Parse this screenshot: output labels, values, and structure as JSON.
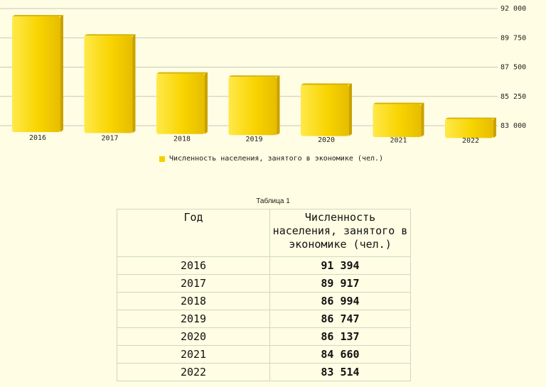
{
  "chart_data": {
    "type": "bar",
    "categories": [
      "2016",
      "2017",
      "2018",
      "2019",
      "2020",
      "2021",
      "2022"
    ],
    "series": [
      {
        "name": "Численность населения, занятого в экономике (чел.)",
        "values": [
          91394,
          89917,
          86994,
          86747,
          86137,
          84660,
          83514
        ]
      }
    ],
    "ylim": [
      83000,
      92000
    ],
    "y_ticks": [
      "92 000",
      "89 750",
      "87 500",
      "85 250",
      "83 000"
    ],
    "y_tick_values": [
      92000,
      89750,
      87500,
      85250,
      83000
    ],
    "grid": true,
    "legend_position": "bottom",
    "bar_color": "#f5d000"
  },
  "legend": {
    "label": "Численность населения, занятого в экономике (чел.)"
  },
  "table": {
    "caption": "Таблица 1",
    "headers": [
      "Год",
      "Численность населения, занятого в экономике (чел.)"
    ],
    "rows": [
      [
        "2016",
        "91 394"
      ],
      [
        "2017",
        "89 917"
      ],
      [
        "2018",
        "86 994"
      ],
      [
        "2019",
        "86 747"
      ],
      [
        "2020",
        "86 137"
      ],
      [
        "2021",
        "84 660"
      ],
      [
        "2022",
        "83 514"
      ]
    ]
  }
}
